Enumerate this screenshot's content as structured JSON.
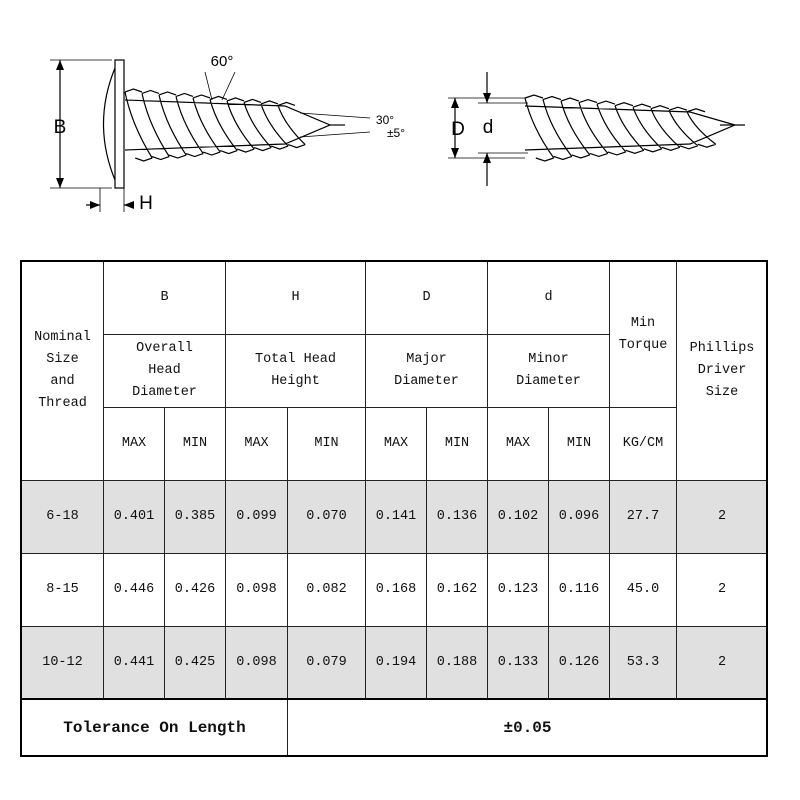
{
  "diagram": {
    "angle_thread": "60°",
    "angle_tip": "30°",
    "angle_tolerance": "±5°",
    "head_diameter": "B",
    "head_height": "H",
    "major_diameter": "D",
    "minor_diameter": "d"
  },
  "table": {
    "nominal": "Nominal Size and Thread",
    "groups": [
      {
        "symbol": "B",
        "name": "Overall Head Diameter"
      },
      {
        "symbol": "H",
        "name": "Total Head Height"
      },
      {
        "symbol": "D",
        "name": "Major Diameter"
      },
      {
        "symbol": "d",
        "name": "Minor Diameter"
      }
    ],
    "torque": "Min Torque",
    "driver": "Phillips Driver Size",
    "subheaders": [
      "MAX",
      "MIN",
      "MAX",
      "MIN",
      "MAX",
      "MIN",
      "MAX",
      "MIN",
      "KG/CM"
    ],
    "rows": [
      [
        "6-18",
        "0.401",
        "0.385",
        "0.099",
        "0.070",
        "0.141",
        "0.136",
        "0.102",
        "0.096",
        "27.7",
        "2"
      ],
      [
        "8-15",
        "0.446",
        "0.426",
        "0.098",
        "0.082",
        "0.168",
        "0.162",
        "0.123",
        "0.116",
        "45.0",
        "2"
      ],
      [
        "10-12",
        "0.441",
        "0.425",
        "0.098",
        "0.079",
        "0.194",
        "0.188",
        "0.133",
        "0.126",
        "53.3",
        "2"
      ]
    ],
    "footer": {
      "label": "Tolerance On Length",
      "value": "±0.05"
    }
  }
}
